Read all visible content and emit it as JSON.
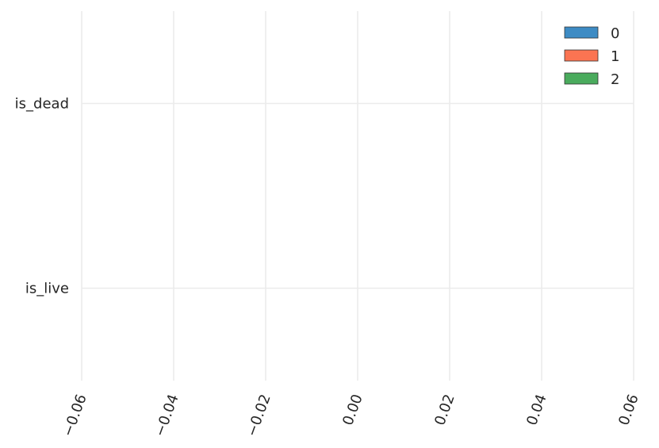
{
  "chart_data": {
    "type": "bar",
    "orientation": "horizontal",
    "title": "",
    "xlabel": "",
    "ylabel": "",
    "categories": [
      "is_dead",
      "is_live"
    ],
    "series": [
      {
        "name": "0",
        "values": [
          0,
          0
        ],
        "color": "#3d8bc4"
      },
      {
        "name": "1",
        "values": [
          0,
          0
        ],
        "color": "#fb7452"
      },
      {
        "name": "2",
        "values": [
          0,
          0
        ],
        "color": "#4aab5d"
      }
    ],
    "xlim": [
      -0.06,
      0.06
    ],
    "x_ticks": [
      -0.06,
      -0.04,
      -0.02,
      0.0,
      0.02,
      0.04,
      0.06
    ],
    "x_tick_labels": [
      "−0.06",
      "−0.04",
      "−0.02",
      "0.00",
      "0.02",
      "0.04",
      "0.06"
    ],
    "grid": true,
    "legend_position": "top-right",
    "bar_edge_color": "#333333"
  }
}
